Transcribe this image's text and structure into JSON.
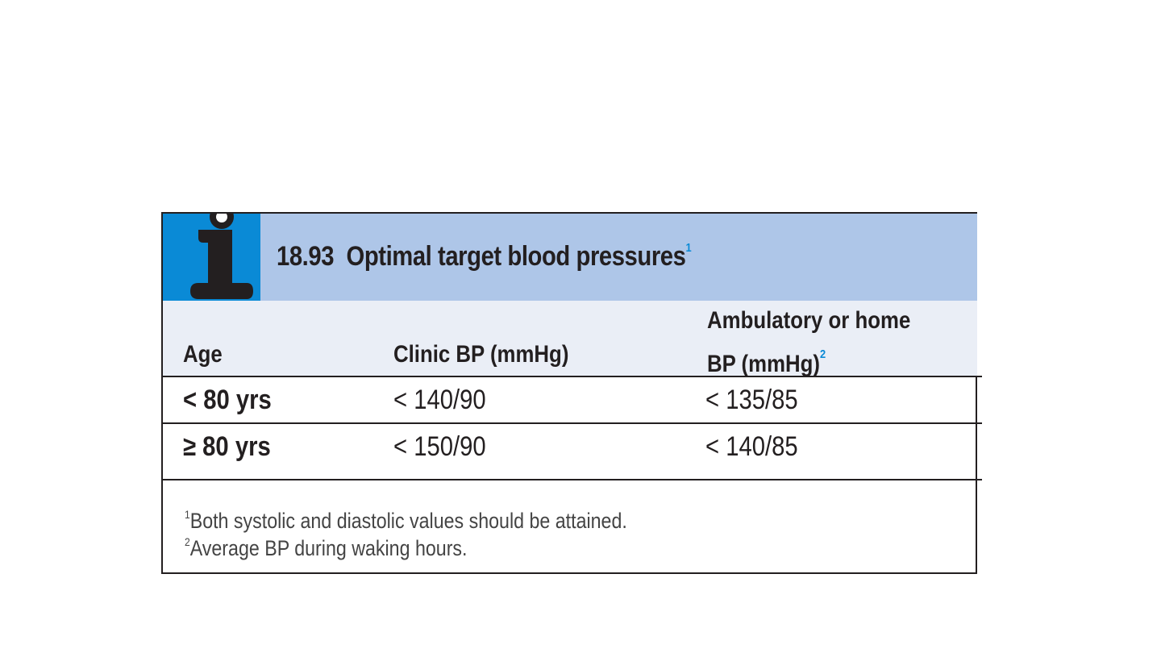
{
  "box": {
    "number": "18.93",
    "title": "Optimal target blood pressures",
    "title_footnote_mark": "1",
    "icon": "info-icon"
  },
  "table": {
    "headers": {
      "age": "Age",
      "clinic": "Clinic BP (mmHg)",
      "ambulatory_line1": "Ambulatory or home",
      "ambulatory_line2": "BP (mmHg)",
      "ambulatory_footnote_mark": "2"
    },
    "rows": [
      {
        "age": "< 80 yrs",
        "clinic": "< 140/90",
        "ambulatory": "< 135/85"
      },
      {
        "age": "≥ 80 yrs",
        "clinic": "< 150/90",
        "ambulatory": "< 140/85"
      }
    ]
  },
  "footnotes": [
    {
      "mark": "1",
      "text": "Both systolic and diastolic values should be attained."
    },
    {
      "mark": "2",
      "text": "Average BP during waking hours."
    }
  ],
  "colors": {
    "title_band": "#aec6e8",
    "icon_background": "#0a8ad6",
    "header_band": "#eaeef6",
    "text": "#231f20"
  }
}
